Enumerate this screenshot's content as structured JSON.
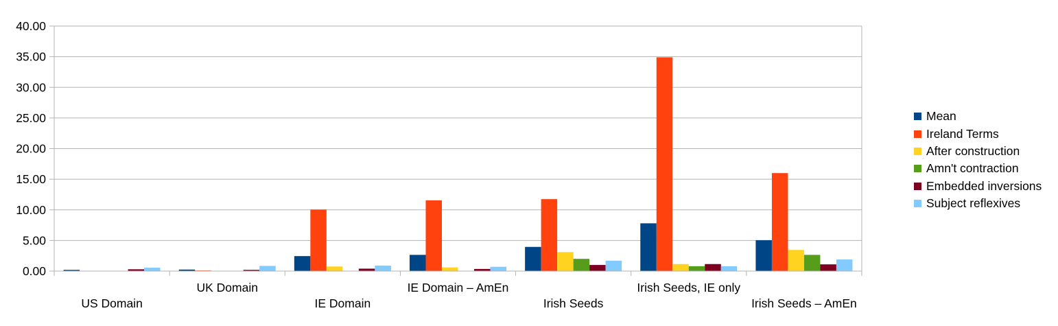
{
  "chart_data": {
    "type": "bar",
    "categories": [
      "US Domain",
      "UK Domain",
      "IE Domain",
      "IE Domain – AmEn",
      "Irish Seeds",
      "Irish Seeds, IE only",
      "Irish Seeds – AmEn"
    ],
    "series": [
      {
        "name": "Mean",
        "color": "#004586",
        "values": [
          0.2,
          0.25,
          2.45,
          2.65,
          3.95,
          7.8,
          5.05
        ]
      },
      {
        "name": "Ireland Terms",
        "color": "#ff420e",
        "values": [
          0.05,
          0.1,
          10.05,
          11.55,
          11.75,
          34.9,
          16.0
        ]
      },
      {
        "name": "After construction",
        "color": "#ffd320",
        "values": [
          0.02,
          0.02,
          0.75,
          0.6,
          3.1,
          1.15,
          3.45
        ]
      },
      {
        "name": "Amn't contraction",
        "color": "#579d1c",
        "values": [
          0.0,
          0.0,
          0.0,
          0.0,
          2.0,
          0.8,
          2.65
        ]
      },
      {
        "name": "Embedded inversions",
        "color": "#7e0021",
        "values": [
          0.3,
          0.2,
          0.4,
          0.35,
          1.0,
          1.15,
          1.1
        ]
      },
      {
        "name": "Subject reflexives",
        "color": "#83caff",
        "values": [
          0.55,
          0.85,
          0.9,
          0.7,
          1.7,
          0.8,
          1.9
        ]
      }
    ],
    "ylim": [
      0,
      40
    ],
    "yticks": [
      "0.00",
      "5.00",
      "10.00",
      "15.00",
      "20.00",
      "25.00",
      "30.00",
      "35.00",
      "40.00"
    ],
    "ytick_values": [
      0,
      5,
      10,
      15,
      20,
      25,
      30,
      35,
      40
    ],
    "grid": true,
    "legend_position": "right",
    "xlabel_layout": "staggered"
  }
}
